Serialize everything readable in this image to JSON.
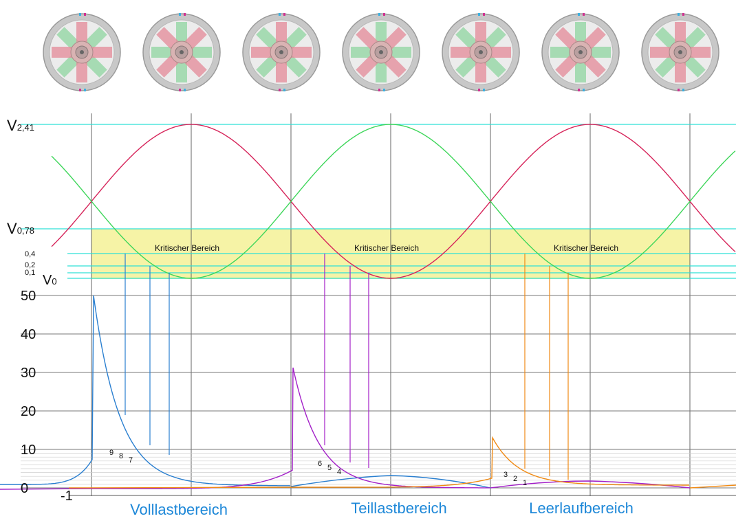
{
  "levels": {
    "v_high": "V",
    "v_high_sub": "2,41",
    "v_mid": "V",
    "v_mid_sub": "0,78",
    "v_zero": "V",
    "v_zero_sub": "0",
    "l04": "0,4",
    "l02": "0,2",
    "l01": "0,1"
  },
  "zone_label": "Kritischer Bereich",
  "y_axis": [
    "50",
    "40",
    "30",
    "20",
    "10",
    "0",
    "-1"
  ],
  "sections": [
    "Volllastbereich",
    "Teillastbereich",
    "Leerlaufbereich"
  ],
  "markers": {
    "volllast": [
      "9",
      "8",
      "7"
    ],
    "teillast": [
      "6",
      "5",
      "4"
    ],
    "leerlauf": [
      "3",
      "2",
      "1"
    ]
  },
  "colors": {
    "red_curve": "#d6245a",
    "green_curve": "#3ed65a",
    "cyan_line": "#2ee0d6",
    "zone_fill": "#f6f3a6",
    "blue_series": "#2a7fd0",
    "purple_series": "#a320c8",
    "orange_series": "#f08a14",
    "section_text": "#1e88d8"
  },
  "wheels": [
    {
      "red": "cross",
      "green": "diag"
    },
    {
      "red": "diag",
      "green": "cross"
    },
    {
      "red": "cross",
      "green": "diag"
    },
    {
      "red": "diag",
      "green": "cross"
    },
    {
      "red": "cross",
      "green": "diag"
    },
    {
      "red": "diag",
      "green": "cross"
    },
    {
      "red": "cross",
      "green": "diag"
    }
  ]
}
